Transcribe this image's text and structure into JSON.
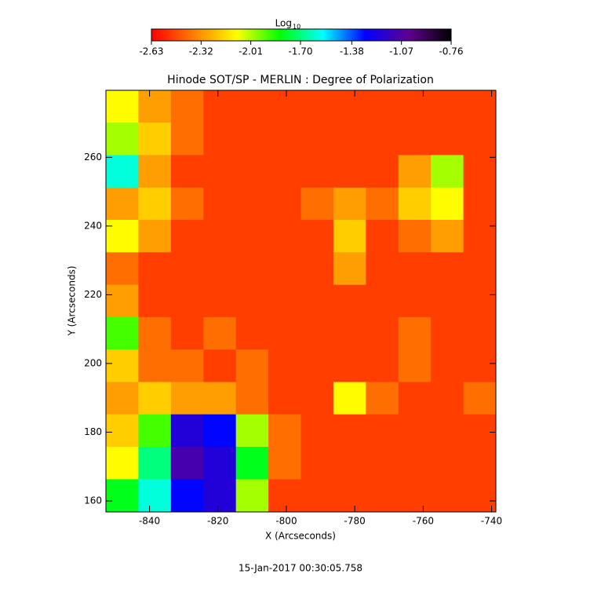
{
  "chart_data": {
    "type": "heatmap",
    "title": "Hinode SOT/SP - MERLIN : Degree of Polarization",
    "x_label": "X (Arcseconds)",
    "y_label": "Y (Arcseconds)",
    "footer": "15-Jan-2017 00:30:05.758",
    "colorbar_label": "Log",
    "colorbar_label_subscript": "10",
    "colorscale": [
      "#ff0000",
      "#ff8000",
      "#ffff00",
      "#00ff00",
      "#00ffff",
      "#0000ff",
      "#600090",
      "#000000"
    ],
    "zlim": [
      -2.63,
      -0.76
    ],
    "zticks": [
      -2.63,
      -2.32,
      -2.01,
      {
        "value": -1.7,
        "label": "-1.70"
      },
      -1.38,
      -1.07,
      -0.76
    ],
    "xlim": [
      -852.75,
      -738.75
    ],
    "ylim": [
      156.8,
      279.5
    ],
    "xticks": [
      -840,
      -820,
      -800,
      -780,
      -760,
      -740
    ],
    "yticks": [
      160,
      180,
      200,
      220,
      240,
      260
    ],
    "x": [
      -848,
      -838.5,
      -829,
      -819.5,
      -810,
      -800.5,
      -791,
      -781.5,
      -772,
      -762.5,
      -753,
      -743.5
    ],
    "y": [
      274.8,
      265.4,
      255.9,
      246.5,
      237.1,
      227.6,
      218.2,
      208.8,
      199.3,
      189.9,
      180.5,
      171.0,
      161.6
    ],
    "z": [
      [
        -2.1,
        -2.3,
        -2.4,
        -2.5,
        -2.5,
        -2.5,
        -2.5,
        -2.5,
        -2.5,
        -2.5,
        -2.5,
        -2.5
      ],
      [
        -2.0,
        -2.2,
        -2.4,
        -2.5,
        -2.5,
        -2.5,
        -2.5,
        -2.5,
        -2.5,
        -2.5,
        -2.5,
        -2.5
      ],
      [
        -1.6,
        -2.3,
        -2.5,
        -2.5,
        -2.5,
        -2.5,
        -2.5,
        -2.5,
        -2.5,
        -2.3,
        -2.0,
        -2.5
      ],
      [
        -2.3,
        -2.2,
        -2.4,
        -2.5,
        -2.5,
        -2.5,
        -2.4,
        -2.3,
        -2.4,
        -2.2,
        -2.1,
        -2.5
      ],
      [
        -2.1,
        -2.3,
        -2.5,
        -2.5,
        -2.5,
        -2.5,
        -2.5,
        -2.2,
        -2.5,
        -2.4,
        -2.3,
        -2.5
      ],
      [
        -2.4,
        -2.5,
        -2.5,
        -2.5,
        -2.5,
        -2.5,
        -2.5,
        -2.3,
        -2.5,
        -2.5,
        -2.5,
        -2.5
      ],
      [
        -2.3,
        -2.5,
        -2.5,
        -2.5,
        -2.5,
        -2.5,
        -2.5,
        -2.5,
        -2.5,
        -2.5,
        -2.5,
        -2.5
      ],
      [
        -1.9,
        -2.4,
        -2.5,
        -2.4,
        -2.5,
        -2.5,
        -2.5,
        -2.5,
        -2.5,
        -2.4,
        -2.5,
        -2.5
      ],
      [
        -2.2,
        -2.4,
        -2.4,
        -2.5,
        -2.4,
        -2.5,
        -2.5,
        -2.5,
        -2.5,
        -2.4,
        -2.5,
        -2.5
      ],
      [
        -2.3,
        -2.2,
        -2.3,
        -2.3,
        -2.4,
        -2.5,
        -2.5,
        -2.1,
        -2.4,
        -2.5,
        -2.5,
        -2.4
      ],
      [
        -2.2,
        -1.9,
        -1.2,
        -1.3,
        -2.0,
        -2.4,
        -2.5,
        -2.5,
        -2.5,
        -2.5,
        -2.5,
        -2.5
      ],
      [
        -2.1,
        -1.7,
        -1.1,
        -1.2,
        -1.8,
        -2.4,
        -2.5,
        -2.5,
        -2.5,
        -2.5,
        -2.5,
        -2.5
      ],
      [
        -1.8,
        -1.6,
        -1.3,
        -1.2,
        -2.0,
        -2.5,
        -2.5,
        -2.5,
        -2.5,
        -2.5,
        -2.5,
        -2.5
      ]
    ]
  }
}
